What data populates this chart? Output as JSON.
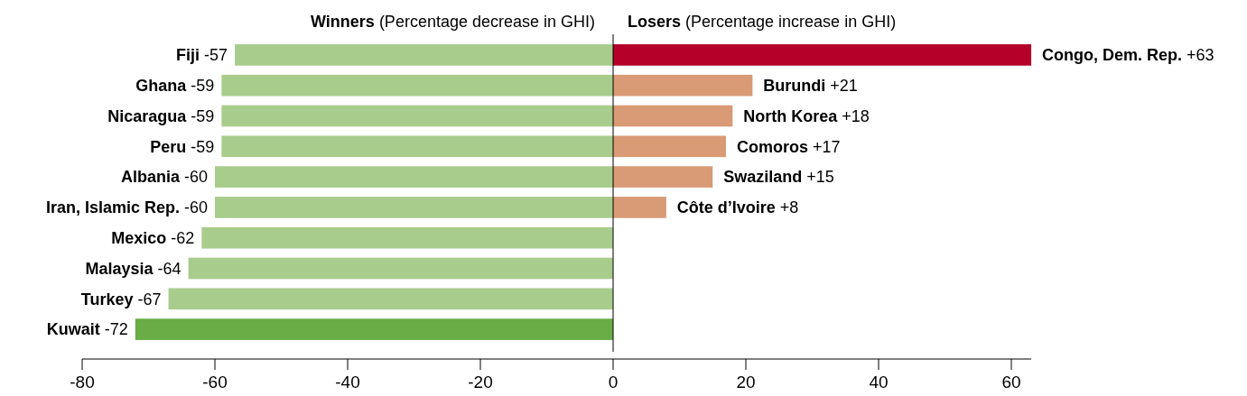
{
  "chart_data": {
    "type": "bar",
    "orientation": "horizontal",
    "categories": [
      null,
      null,
      null,
      null,
      null,
      null,
      null,
      null,
      null,
      null
    ],
    "series": [
      {
        "name": "Winners (Percentage decrease in GHI)",
        "colors": [
          "#a8cc8c",
          "#a8cc8c",
          "#a8cc8c",
          "#a8cc8c",
          "#a8cc8c",
          "#a8cc8c",
          "#a8cc8c",
          "#a8cc8c",
          "#a8cc8c",
          "#6aac46"
        ],
        "values": [
          -57,
          -59,
          -59,
          -59,
          -60,
          -60,
          -62,
          -64,
          -67,
          -72
        ],
        "value_labels": [
          "Fiji -57",
          "Ghana -59",
          "Nicaragua -59",
          "Peru -59",
          "Albania -60",
          "Iran, Islamic Rep. -60",
          "Mexico -62",
          "Malaysia -64",
          "Turkey -67",
          "Kuwait -72"
        ]
      },
      {
        "name": "Losers (Percentage increase in GHI)",
        "colors": [
          "#b5002a",
          "#d99a76",
          "#d99a76",
          "#d99a76",
          "#d99a76",
          "#d99a76",
          null,
          null,
          null,
          null
        ],
        "values": [
          63,
          21,
          18,
          17,
          15,
          8,
          null,
          null,
          null,
          null
        ],
        "value_labels": [
          "Congo, Dem. Rep. +63",
          "Burundi +21",
          "North Korea +18",
          "Comoros +17",
          "Swaziland +15",
          "Côte d’Ivoire +8",
          null,
          null,
          null,
          null
        ]
      }
    ],
    "stacked": true,
    "xlim": [
      -80,
      63
    ],
    "xticks": [
      -80,
      -60,
      -40,
      -20,
      0,
      20,
      40,
      60
    ]
  }
}
